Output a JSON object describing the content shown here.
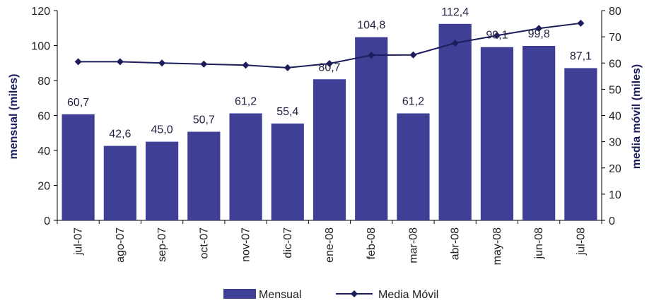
{
  "chart_data": {
    "type": "bar",
    "categories": [
      "jul-07",
      "ago-07",
      "sep-07",
      "oct-07",
      "nov-07",
      "dic-07",
      "ene-08",
      "feb-08",
      "mar-08",
      "abr-08",
      "may-08",
      "jun-08",
      "jul-08"
    ],
    "series": [
      {
        "name": "Mensual",
        "type": "bar",
        "axis": "left",
        "values": [
          60.7,
          42.6,
          45.0,
          50.7,
          61.2,
          55.4,
          80.7,
          104.8,
          61.2,
          112.4,
          99.1,
          99.8,
          87.1
        ],
        "labels": [
          "60,7",
          "42,6",
          "45,0",
          "50,7",
          "61,2",
          "55,4",
          "80,7",
          "104,8",
          "61,2",
          "112,4",
          "99,1",
          "99,8",
          "87,1"
        ]
      },
      {
        "name": "Media Móvil",
        "type": "line",
        "axis": "right",
        "values": [
          60.5,
          60.5,
          60.0,
          59.6,
          59.2,
          58.2,
          59.8,
          63.0,
          63.1,
          67.6,
          70.5,
          73.2,
          75.2
        ]
      }
    ],
    "ylabel": "mensual (miles)",
    "ylabel_right": "media móvil (miles)",
    "ylim": [
      0,
      120
    ],
    "ylim_right": [
      0,
      80
    ],
    "yticks": [
      0,
      20,
      40,
      60,
      80,
      100,
      120
    ],
    "yticks_right": [
      0,
      10,
      20,
      30,
      40,
      50,
      60,
      70,
      80
    ],
    "grid": false,
    "legend_position": "bottom-center",
    "colors": {
      "bar": "#3f3f96",
      "line": "#1d1d5c"
    }
  }
}
